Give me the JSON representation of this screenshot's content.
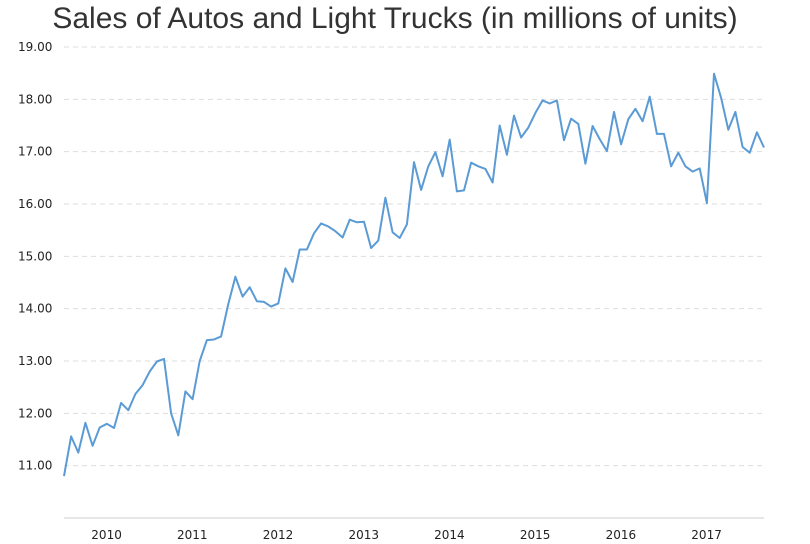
{
  "chart_data": {
    "type": "line",
    "title": "Sales of Autos and Light Trucks (in millions of units)",
    "xlabel": "",
    "ylabel": "",
    "ylim": [
      10.0,
      19.0
    ],
    "y_ticks": [
      "11.00",
      "12.00",
      "13.00",
      "14.00",
      "15.00",
      "16.00",
      "17.00",
      "18.00",
      "19.00"
    ],
    "x_ticks": [
      {
        "label": "2010",
        "x": 2010.0
      },
      {
        "label": "2011",
        "x": 2011.0
      },
      {
        "label": "2012",
        "x": 2012.0
      },
      {
        "label": "2013",
        "x": 2013.0
      },
      {
        "label": "2014",
        "x": 2014.0
      },
      {
        "label": "2015",
        "x": 2015.0
      },
      {
        "label": "2016",
        "x": 2016.0
      },
      {
        "label": "2017",
        "x": 2017.0
      }
    ],
    "grid": "horizontal dashed",
    "line_color": "#5b9bd5",
    "x_start": "2009-09",
    "frequency": "monthly",
    "series": [
      {
        "values": [
          10.8,
          11.56,
          11.25,
          11.82,
          11.38,
          11.73,
          11.8,
          11.72,
          12.2,
          12.06,
          12.37,
          12.54,
          12.8,
          12.99,
          13.04,
          12.0,
          11.58,
          12.42,
          12.27,
          13.0,
          13.4,
          13.41,
          13.47,
          14.09,
          14.61,
          14.23,
          14.41,
          14.14,
          14.13,
          14.04,
          14.1,
          14.77,
          14.51,
          15.13,
          15.13,
          15.44,
          15.63,
          15.57,
          15.48,
          15.36,
          15.7,
          15.65,
          15.66,
          15.16,
          15.3,
          16.12,
          15.46,
          15.35,
          15.61,
          16.8,
          16.27,
          16.72,
          16.99,
          16.53,
          17.23,
          16.24,
          16.26,
          16.79,
          16.72,
          16.67,
          16.41,
          17.5,
          16.94,
          17.69,
          17.27,
          17.46,
          17.74,
          17.98,
          17.92,
          17.98,
          17.22,
          17.63,
          17.53,
          16.77,
          17.49,
          17.24,
          17.01,
          17.76,
          17.14,
          17.62,
          17.82,
          17.58,
          18.05,
          17.34,
          17.34,
          16.72,
          16.98,
          16.72,
          16.62,
          16.68,
          16.02,
          18.49,
          18.03,
          17.42,
          17.76,
          17.09,
          16.98,
          17.37,
          17.08
        ]
      }
    ]
  }
}
